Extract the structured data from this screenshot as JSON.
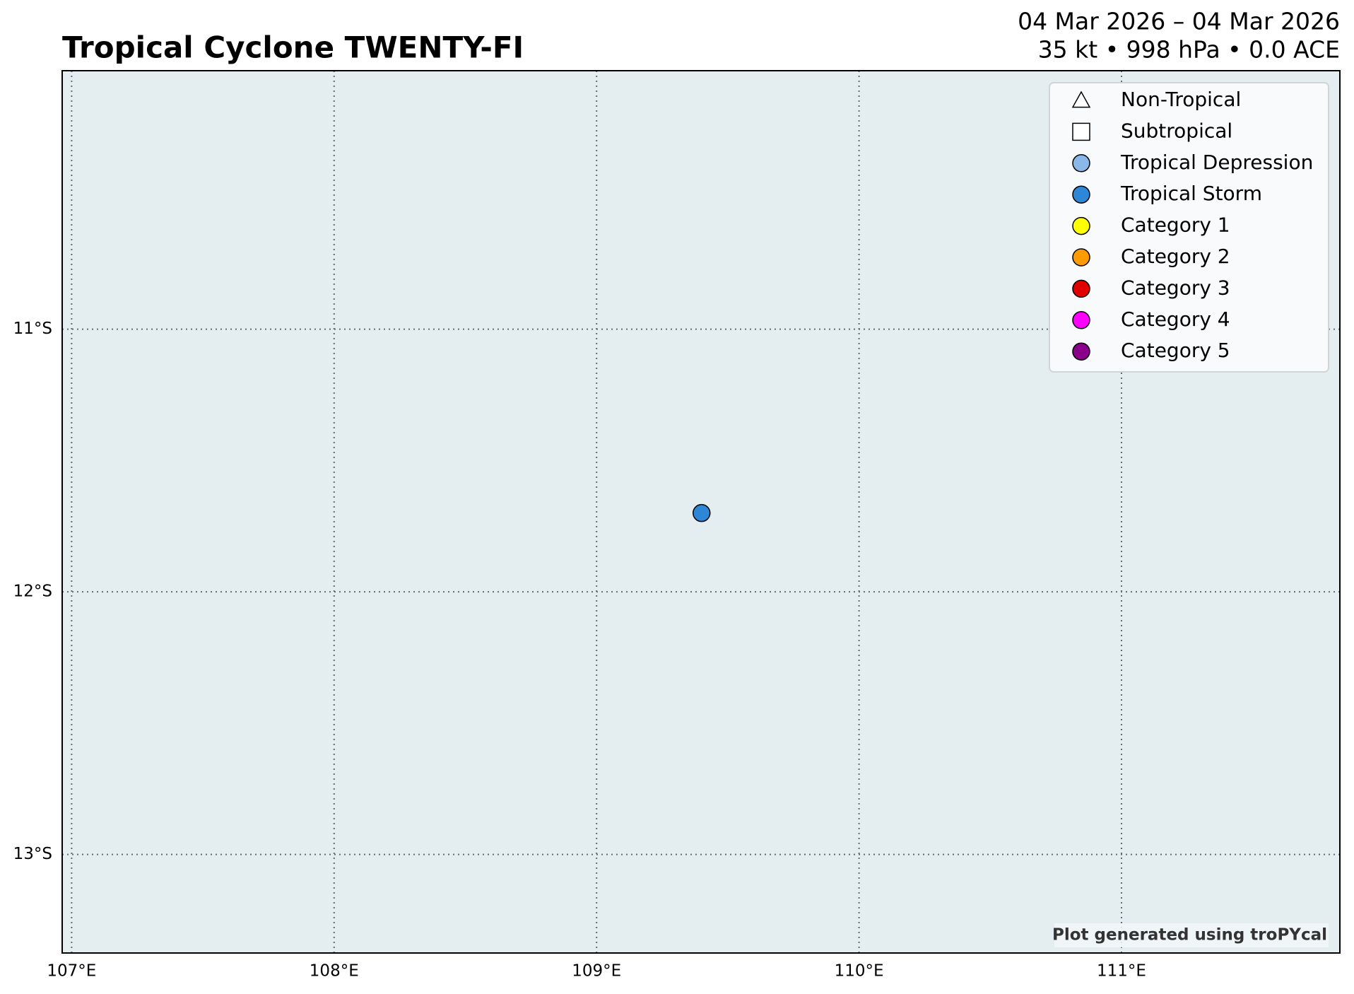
{
  "chart_data": {
    "type": "scatter",
    "title": "Tropical Cyclone TWENTY-FI",
    "subtitle": [
      "04 Mar 2026 – 04 Mar 2026",
      "35 kt • 998 hPa • 0.0 ACE"
    ],
    "credit": "Plot generated using troPYcal",
    "x": [
      109.4
    ],
    "values": [
      -11.7
    ],
    "color": "#2e86d6",
    "xlim": [
      106.964,
      111.832
    ],
    "ylim": [
      -13.375,
      -10.016
    ],
    "xticks": [
      {
        "value": 107,
        "label": "107°E"
      },
      {
        "value": 108,
        "label": "108°E"
      },
      {
        "value": 109,
        "label": "109°E"
      },
      {
        "value": 110,
        "label": "110°E"
      },
      {
        "value": 111,
        "label": "111°E"
      }
    ],
    "yticks": [
      {
        "value": -11,
        "label": "11°S"
      },
      {
        "value": -12,
        "label": "12°S"
      },
      {
        "value": -13,
        "label": "13°S"
      }
    ],
    "grid": true,
    "legend_position": "upper right",
    "legend": [
      {
        "name": "Non-Tropical",
        "marker": "triangle",
        "color": "#ffffff"
      },
      {
        "name": "Subtropical",
        "marker": "square",
        "color": "#ffffff"
      },
      {
        "name": "Tropical Depression",
        "marker": "circle",
        "color": "#8ab8e8"
      },
      {
        "name": "Tropical Storm",
        "marker": "circle",
        "color": "#2e86d6"
      },
      {
        "name": "Category 1",
        "marker": "circle",
        "color": "#ffff00"
      },
      {
        "name": "Category 2",
        "marker": "circle",
        "color": "#ff9a00"
      },
      {
        "name": "Category 3",
        "marker": "circle",
        "color": "#e00000"
      },
      {
        "name": "Category 4",
        "marker": "circle",
        "color": "#ff00ff"
      },
      {
        "name": "Category 5",
        "marker": "circle",
        "color": "#8b008b"
      }
    ]
  }
}
